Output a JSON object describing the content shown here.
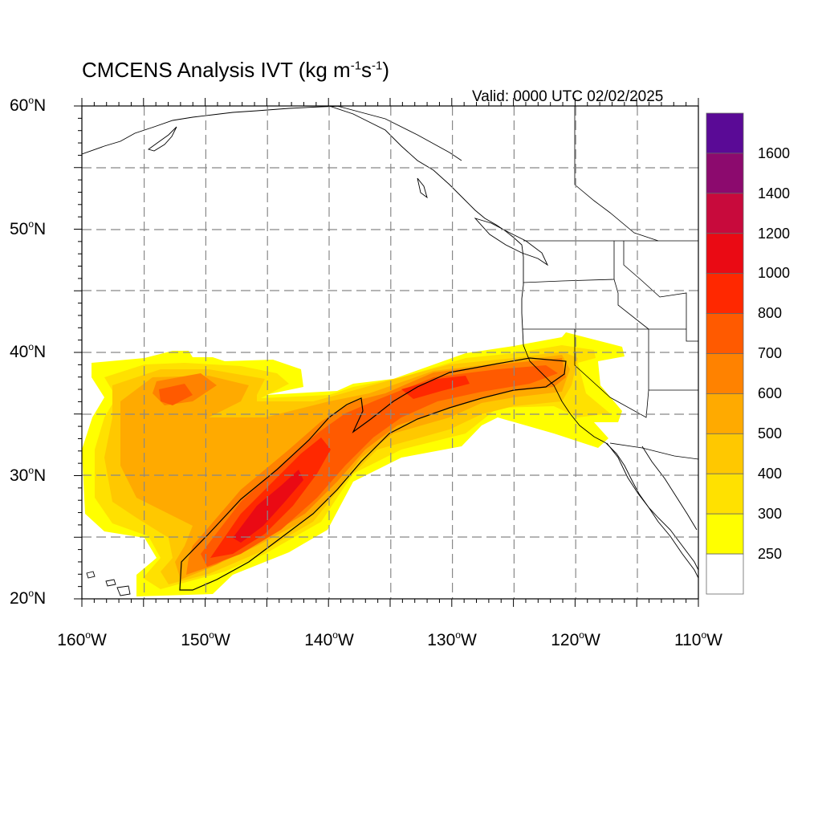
{
  "title": {
    "text": "CMCENS Analysis IVT (kg m",
    "sup1": "-1",
    "mid": "s",
    "sup2": "-1",
    "end": ")"
  },
  "valid_time": "Valid: 0000 UTC 02/02/2025",
  "map": {
    "lat_labels": [
      {
        "deg": "60",
        "hemi": "N"
      },
      {
        "deg": "50",
        "hemi": "N"
      },
      {
        "deg": "40",
        "hemi": "N"
      },
      {
        "deg": "30",
        "hemi": "N"
      },
      {
        "deg": "20",
        "hemi": "N"
      }
    ],
    "lon_labels": [
      {
        "deg": "160",
        "hemi": "W"
      },
      {
        "deg": "150",
        "hemi": "W"
      },
      {
        "deg": "140",
        "hemi": "W"
      },
      {
        "deg": "130",
        "hemi": "W"
      },
      {
        "deg": "120",
        "hemi": "W"
      },
      {
        "deg": "110",
        "hemi": "W"
      }
    ],
    "lon_range": [
      -160,
      -110
    ],
    "lat_range": [
      20,
      60
    ],
    "gridlines": "dashed",
    "contour_level": 700
  },
  "colorbar": {
    "labels": [
      "1600",
      "1400",
      "1200",
      "1000",
      "800",
      "700",
      "600",
      "500",
      "400",
      "300",
      "250"
    ],
    "colors": [
      "#5a0a96",
      "#8c0a6e",
      "#c80a3c",
      "#ea0a14",
      "#ff2800",
      "#ff5a00",
      "#ff8200",
      "#ffaa00",
      "#ffc800",
      "#ffe100",
      "#ffff00",
      "#ffffff"
    ]
  }
}
